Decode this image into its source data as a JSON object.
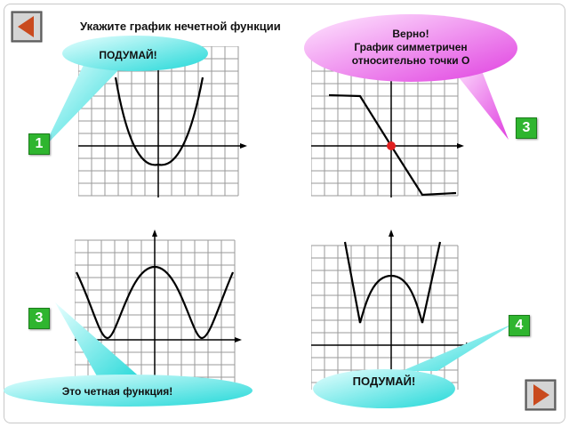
{
  "title": "Укажите график нечетной функции",
  "bubbles": {
    "think_top": "ПОДУМАЙ!",
    "correct_line1": "Верно!",
    "correct_line2": "График симметричен",
    "correct_line3": "относительно точки О",
    "even": "Это четная функция!",
    "think_bottom": "ПОДУМАЙ!"
  },
  "badges": {
    "graph1": "1",
    "graph2": "3",
    "graph3": "3",
    "graph4": "4"
  },
  "nav": {
    "prev_icon": "arrow-left-icon",
    "next_icon": "arrow-right-icon"
  },
  "colors": {
    "badge_green": "#2fb52f",
    "nav_red": "#c94a1e",
    "magenta_bubble": "#ee55ee",
    "cyan_bubble": "#33dddd",
    "point_red": "#e02020"
  }
}
